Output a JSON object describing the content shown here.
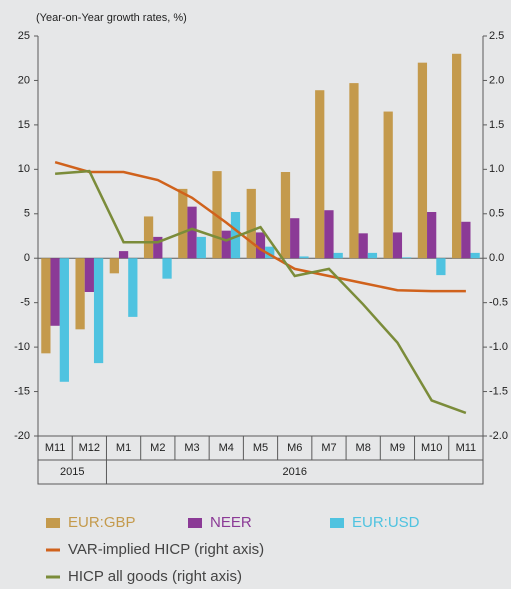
{
  "chart_data": {
    "type": "bar",
    "y_axis_label": "(Year-on-Year growth rates, %)",
    "categories": [
      "M11",
      "M12",
      "M1",
      "M2",
      "M3",
      "M4",
      "M5",
      "M6",
      "M7",
      "M8",
      "M9",
      "M10",
      "M11"
    ],
    "x_groups": [
      {
        "label": "2015",
        "count": 2
      },
      {
        "label": "2016",
        "count": 11
      }
    ],
    "series": [
      {
        "name": "EUR:GBP",
        "color": "#c49a4c",
        "type": "bar",
        "values": [
          -10.7,
          -8.0,
          -1.7,
          4.7,
          7.8,
          9.8,
          7.8,
          9.7,
          18.9,
          19.7,
          16.5,
          22.0,
          23.0
        ]
      },
      {
        "name": "NEER",
        "color": "#8b3a96",
        "type": "bar",
        "values": [
          -7.6,
          -3.8,
          0.8,
          2.4,
          5.8,
          3.1,
          2.9,
          4.5,
          5.4,
          2.8,
          2.9,
          5.2,
          4.1
        ]
      },
      {
        "name": "EUR:USD",
        "color": "#4fc3e0",
        "type": "bar",
        "values": [
          -13.9,
          -11.8,
          -6.6,
          -2.3,
          2.4,
          5.2,
          1.3,
          0.2,
          0.6,
          0.6,
          0.1,
          -1.9,
          0.6
        ]
      },
      {
        "name": "VAR-implied HICP (right axis)",
        "color": "#d0621c",
        "type": "line",
        "axis": "y2",
        "values": [
          1.08,
          0.97,
          0.97,
          0.88,
          0.68,
          0.4,
          0.1,
          -0.12,
          -0.2,
          -0.28,
          -0.36,
          -0.37,
          -0.37
        ]
      },
      {
        "name": "HICP all goods (right axis)",
        "color": "#7b8c3a",
        "type": "line",
        "axis": "y2",
        "values": [
          0.95,
          0.98,
          0.18,
          0.18,
          0.33,
          0.2,
          0.35,
          -0.2,
          -0.12,
          -0.52,
          -0.95,
          -1.6,
          -1.74
        ]
      }
    ],
    "ylim": [
      -20,
      25
    ],
    "yticks": [
      -20,
      -15,
      -10,
      -5,
      0,
      5,
      10,
      15,
      20,
      25
    ],
    "y2lim": [
      -2.0,
      2.5
    ],
    "y2ticks": [
      {
        "value": -2.0,
        "label": "-2.0"
      },
      {
        "value": -1.5,
        "label": "-1.5"
      },
      {
        "value": -1.0,
        "label": "-1.0"
      },
      {
        "value": -0.5,
        "label": "-0.5"
      },
      {
        "value": 0.0,
        "label": "0.0"
      },
      {
        "value": 0.5,
        "label": "0.5"
      },
      {
        "value": 1.0,
        "label": "1.0"
      },
      {
        "value": 1.5,
        "label": "1.5"
      },
      {
        "value": 2.0,
        "label": "2.0"
      },
      {
        "value": 2.5,
        "label": "2.5"
      }
    ],
    "grid": false,
    "legend": "bottom"
  }
}
